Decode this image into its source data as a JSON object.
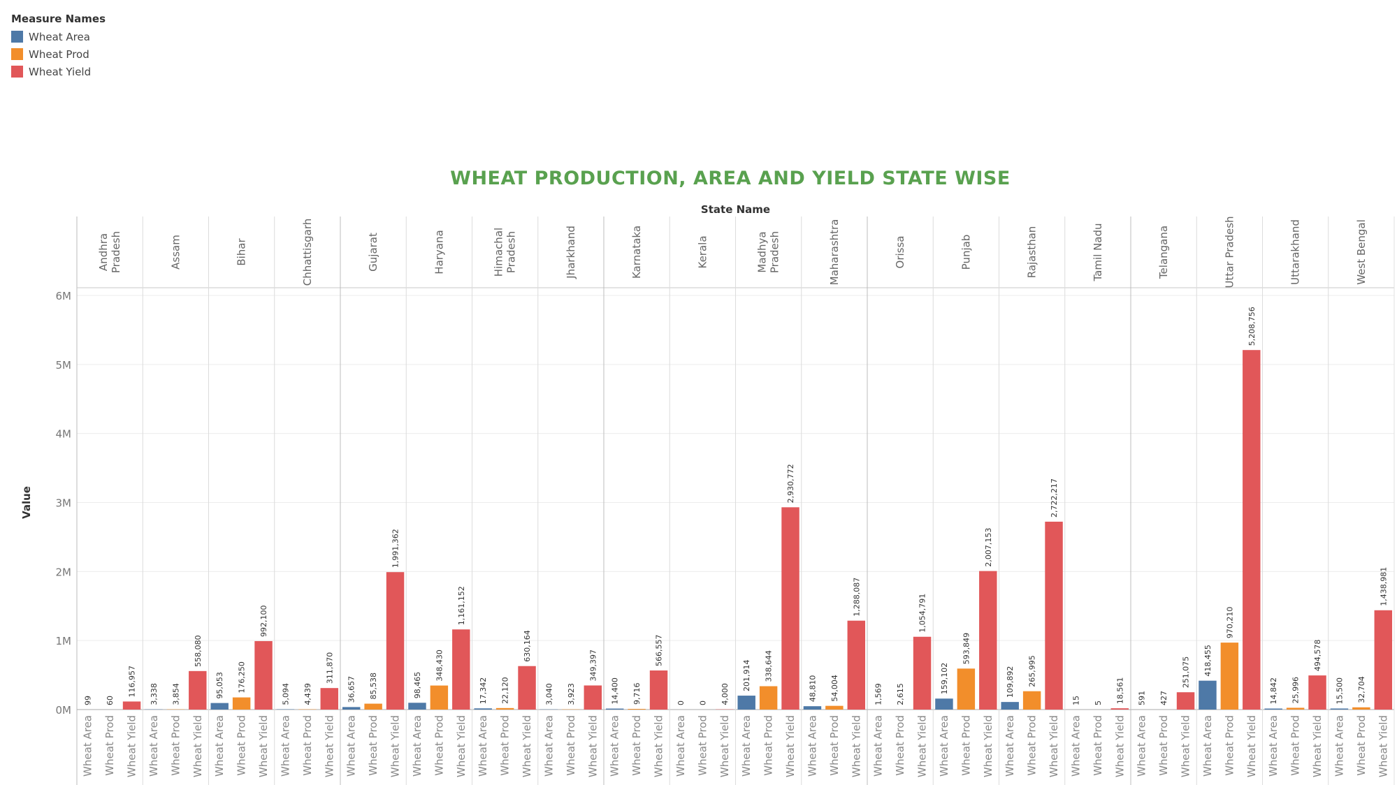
{
  "legend": {
    "title": "Measure Names",
    "items": [
      {
        "label": "Wheat Area",
        "color": "#4e79a7"
      },
      {
        "label": "Wheat Prod",
        "color": "#f28e2b"
      },
      {
        "label": "Wheat Yield",
        "color": "#e15759"
      }
    ]
  },
  "chart_data": {
    "type": "bar",
    "title": "WHEAT PRODUCTION, AREA AND YIELD STATE WISE",
    "column_header": "State Name",
    "ylabel": "Value",
    "ylim": [
      0,
      6000000
    ],
    "yticks": [
      {
        "value": 0,
        "label": "0M"
      },
      {
        "value": 1000000,
        "label": "1M"
      },
      {
        "value": 2000000,
        "label": "2M"
      },
      {
        "value": 3000000,
        "label": "3M"
      },
      {
        "value": 4000000,
        "label": "4M"
      },
      {
        "value": 5000000,
        "label": "5M"
      },
      {
        "value": 6000000,
        "label": "6M"
      }
    ],
    "measures": [
      "Wheat Area",
      "Wheat Prod",
      "Wheat Yield"
    ],
    "grid": true,
    "legend_position": "top-left",
    "states": [
      {
        "name": "Andhra\nPradesh",
        "values": [
          99,
          60,
          116957
        ],
        "labels": [
          "99",
          "60",
          "116,957"
        ]
      },
      {
        "name": "Assam",
        "values": [
          3338,
          3854,
          558080
        ],
        "labels": [
          "3,338",
          "3,854",
          "558,080"
        ]
      },
      {
        "name": "Bihar",
        "values": [
          95053,
          176250,
          992100
        ],
        "labels": [
          "95,053",
          "176,250",
          "992,100"
        ]
      },
      {
        "name": "Chhattisgarh",
        "values": [
          5094,
          4439,
          311870
        ],
        "labels": [
          "5,094",
          "4,439",
          "311,870"
        ]
      },
      {
        "name": "Gujarat",
        "values": [
          36657,
          85538,
          1991362
        ],
        "labels": [
          "36,657",
          "85,538",
          "1,991,362"
        ]
      },
      {
        "name": "Haryana",
        "values": [
          98465,
          348430,
          1161152
        ],
        "labels": [
          "98,465",
          "348,430",
          "1,161,152"
        ]
      },
      {
        "name": "Himachal\nPradesh",
        "values": [
          17342,
          22120,
          630164
        ],
        "labels": [
          "17,342",
          "22,120",
          "630,164"
        ]
      },
      {
        "name": "Jharkhand",
        "values": [
          3040,
          3923,
          349397
        ],
        "labels": [
          "3,040",
          "3,923",
          "349,397"
        ]
      },
      {
        "name": "Karnataka",
        "values": [
          14400,
          9716,
          566557
        ],
        "labels": [
          "14,400",
          "9,716",
          "566,557"
        ]
      },
      {
        "name": "Kerala",
        "values": [
          0,
          0,
          4000
        ],
        "labels": [
          "0",
          "0",
          "4,000"
        ]
      },
      {
        "name": "Madhya\nPradesh",
        "values": [
          201914,
          338644,
          2930772
        ],
        "labels": [
          "201,914",
          "338,644",
          "2,930,772"
        ]
      },
      {
        "name": "Maharashtra",
        "values": [
          48810,
          54004,
          1288087
        ],
        "labels": [
          "48,810",
          "54,004",
          "1,288,087"
        ]
      },
      {
        "name": "Orissa",
        "values": [
          1569,
          2615,
          1054791
        ],
        "labels": [
          "1,569",
          "2,615",
          "1,054,791"
        ]
      },
      {
        "name": "Punjab",
        "values": [
          159102,
          593849,
          2007153
        ],
        "labels": [
          "159,102",
          "593,849",
          "2,007,153"
        ]
      },
      {
        "name": "Rajasthan",
        "values": [
          109892,
          265995,
          2722217
        ],
        "labels": [
          "109,892",
          "265,995",
          "2,722,217"
        ]
      },
      {
        "name": "Tamil Nadu",
        "values": [
          15,
          5,
          18561
        ],
        "labels": [
          "15",
          "5",
          "18,561"
        ]
      },
      {
        "name": "Telangana",
        "values": [
          591,
          427,
          251075
        ],
        "labels": [
          "591",
          "427",
          "251,075"
        ]
      },
      {
        "name": "Uttar Pradesh",
        "values": [
          418455,
          970210,
          5208756
        ],
        "labels": [
          "418,455",
          "970,210",
          "5,208,756"
        ]
      },
      {
        "name": "Uttarakhand",
        "values": [
          14842,
          25996,
          494578
        ],
        "labels": [
          "14,842",
          "25,996",
          "494,578"
        ]
      },
      {
        "name": "West Bengal",
        "values": [
          15500,
          32704,
          1438981
        ],
        "labels": [
          "15,500",
          "32,704",
          "1,438,981"
        ]
      }
    ]
  }
}
